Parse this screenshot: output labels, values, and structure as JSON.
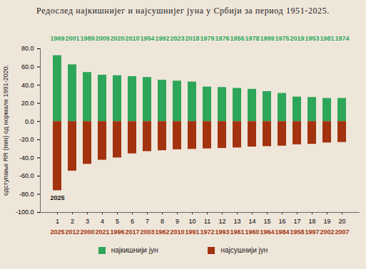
{
  "chart_data": {
    "type": "bar",
    "title": "Редослед најкишнијег и најсушнијег јуна у Србији за период 1951-2025.",
    "y_label": "одступање RR (mm) од нормале 1991-2020.",
    "categories": [
      "1",
      "2",
      "3",
      "4",
      "5",
      "6",
      "7",
      "8",
      "9",
      "10",
      "11",
      "12",
      "13",
      "14",
      "15",
      "16",
      "17",
      "18",
      "19",
      "20"
    ],
    "series": [
      {
        "name": "најкишнији јун",
        "color": "#2ea65a",
        "values": [
          72.5,
          62.5,
          54,
          51,
          50.5,
          49.5,
          48.5,
          45.5,
          44.5,
          43.5,
          38,
          37.5,
          36.5,
          35.5,
          33,
          31,
          27,
          26.5,
          25.5,
          25.5
        ],
        "years": [
          "1969",
          "2001",
          "1989",
          "2009",
          "2020",
          "2010",
          "1954",
          "1992",
          "2023",
          "2018",
          "1979",
          "1976",
          "1956",
          "1978",
          "1999",
          "1975",
          "2019",
          "1953",
          "1981",
          "1974"
        ]
      },
      {
        "name": "најсушнији јун",
        "color": "#a3320f",
        "values": [
          -76,
          -54.5,
          -47,
          -42.5,
          -40,
          -35.5,
          -33,
          -32,
          -31,
          -30.5,
          -30,
          -29.5,
          -29,
          -28,
          -27.5,
          -27,
          -25.5,
          -25,
          -23.5,
          -23
        ],
        "years": [
          "2025",
          "2012",
          "2000",
          "2021",
          "1996",
          "2017",
          "2003",
          "1962",
          "2010",
          "1991",
          "1972",
          "1993",
          "1961",
          "1960",
          "1964",
          "1984",
          "1958",
          "1997",
          "2002",
          "2007"
        ]
      }
    ],
    "annotations": [
      {
        "text": "2025",
        "category": "1",
        "series": "најсушнији јун"
      }
    ],
    "ylim": [
      -100,
      80
    ],
    "yticks": [
      {
        "value": -100,
        "label": "-100.0"
      },
      {
        "value": -80,
        "label": "-80.0"
      },
      {
        "value": -60,
        "label": "-60.0"
      },
      {
        "value": -40,
        "label": "-40.0"
      },
      {
        "value": -20,
        "label": "-20.0"
      },
      {
        "value": 0,
        "label": "0.0"
      },
      {
        "value": 20,
        "label": "20.0"
      },
      {
        "value": 40,
        "label": "40.0"
      },
      {
        "value": 60,
        "label": "60.0"
      },
      {
        "value": 80,
        "label": "80.0"
      }
    ],
    "grid": false,
    "legend": "bottom"
  }
}
